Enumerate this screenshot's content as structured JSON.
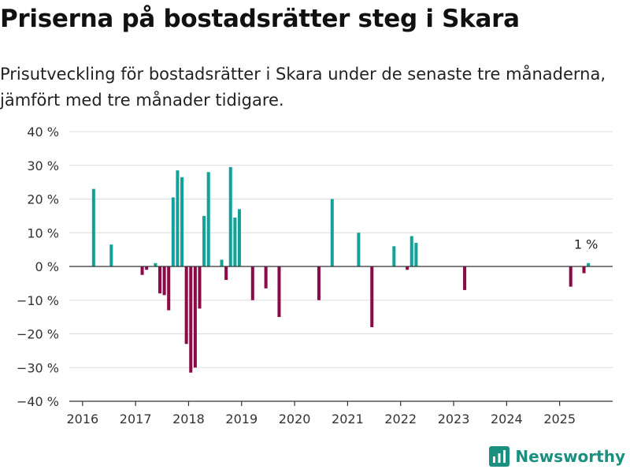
{
  "header": {
    "title": "Priserna på bostadsrätter steg i Skara",
    "subtitle": "Prisutveckling för bostadsrätter i Skara under de senaste tre månaderna, jämfört med tre månader tidigare."
  },
  "brand": {
    "name": "Newsworthy",
    "icon": "newsworthy-logo-icon"
  },
  "colors": {
    "positive": "#12a29a",
    "negative": "#8b0a47",
    "grid": "#dddddd",
    "zero_line": "#333333",
    "accent": "#1b8f80"
  },
  "chart_data": {
    "type": "bar",
    "title": "",
    "xlabel": "",
    "ylabel": "",
    "ylim": [
      -40,
      40
    ],
    "xlim": [
      "2015-10",
      "2026-01"
    ],
    "grid": true,
    "y_ticks": [
      {
        "value": 40,
        "label": "40 %"
      },
      {
        "value": 30,
        "label": "30 %"
      },
      {
        "value": 20,
        "label": "20 %"
      },
      {
        "value": 10,
        "label": "10 %"
      },
      {
        "value": 0,
        "label": "0 %"
      },
      {
        "value": -10,
        "label": "−10 %"
      },
      {
        "value": -20,
        "label": "−20 %"
      },
      {
        "value": -30,
        "label": "−30 %"
      },
      {
        "value": -40,
        "label": "−40 %"
      }
    ],
    "x_ticks": [
      "2016",
      "2017",
      "2018",
      "2019",
      "2020",
      "2021",
      "2022",
      "2023",
      "2024",
      "2025"
    ],
    "bars": [
      {
        "date": "2016-03",
        "value": 23
      },
      {
        "date": "2016-07",
        "value": 6.5
      },
      {
        "date": "2017-02",
        "value": -2.5
      },
      {
        "date": "2017-03",
        "value": -1
      },
      {
        "date": "2017-05",
        "value": 1
      },
      {
        "date": "2017-06",
        "value": -8
      },
      {
        "date": "2017-07",
        "value": -8.5
      },
      {
        "date": "2017-08",
        "value": -13
      },
      {
        "date": "2017-09",
        "value": 20.5
      },
      {
        "date": "2017-10",
        "value": 28.5
      },
      {
        "date": "2017-11",
        "value": 26.5
      },
      {
        "date": "2017-12",
        "value": -23
      },
      {
        "date": "2018-01",
        "value": -31.5
      },
      {
        "date": "2018-02",
        "value": -30
      },
      {
        "date": "2018-03",
        "value": -12.5
      },
      {
        "date": "2018-04",
        "value": 15
      },
      {
        "date": "2018-05",
        "value": 28
      },
      {
        "date": "2018-08",
        "value": 2
      },
      {
        "date": "2018-09",
        "value": -4
      },
      {
        "date": "2018-10",
        "value": 29.5
      },
      {
        "date": "2018-11",
        "value": 14.5
      },
      {
        "date": "2018-12",
        "value": 17
      },
      {
        "date": "2019-03",
        "value": -10
      },
      {
        "date": "2019-06",
        "value": -6.5
      },
      {
        "date": "2019-09",
        "value": -15
      },
      {
        "date": "2020-06",
        "value": -10
      },
      {
        "date": "2020-09",
        "value": 20
      },
      {
        "date": "2021-03",
        "value": 10
      },
      {
        "date": "2021-06",
        "value": -18
      },
      {
        "date": "2021-11",
        "value": 6
      },
      {
        "date": "2022-02",
        "value": -1
      },
      {
        "date": "2022-03",
        "value": 9
      },
      {
        "date": "2022-04",
        "value": 7
      },
      {
        "date": "2023-03",
        "value": -7
      },
      {
        "date": "2025-03",
        "value": -6
      },
      {
        "date": "2025-06",
        "value": -2
      },
      {
        "date": "2025-07",
        "value": 1
      }
    ],
    "annotation": {
      "date": "2025-07",
      "text": "1 %"
    }
  }
}
